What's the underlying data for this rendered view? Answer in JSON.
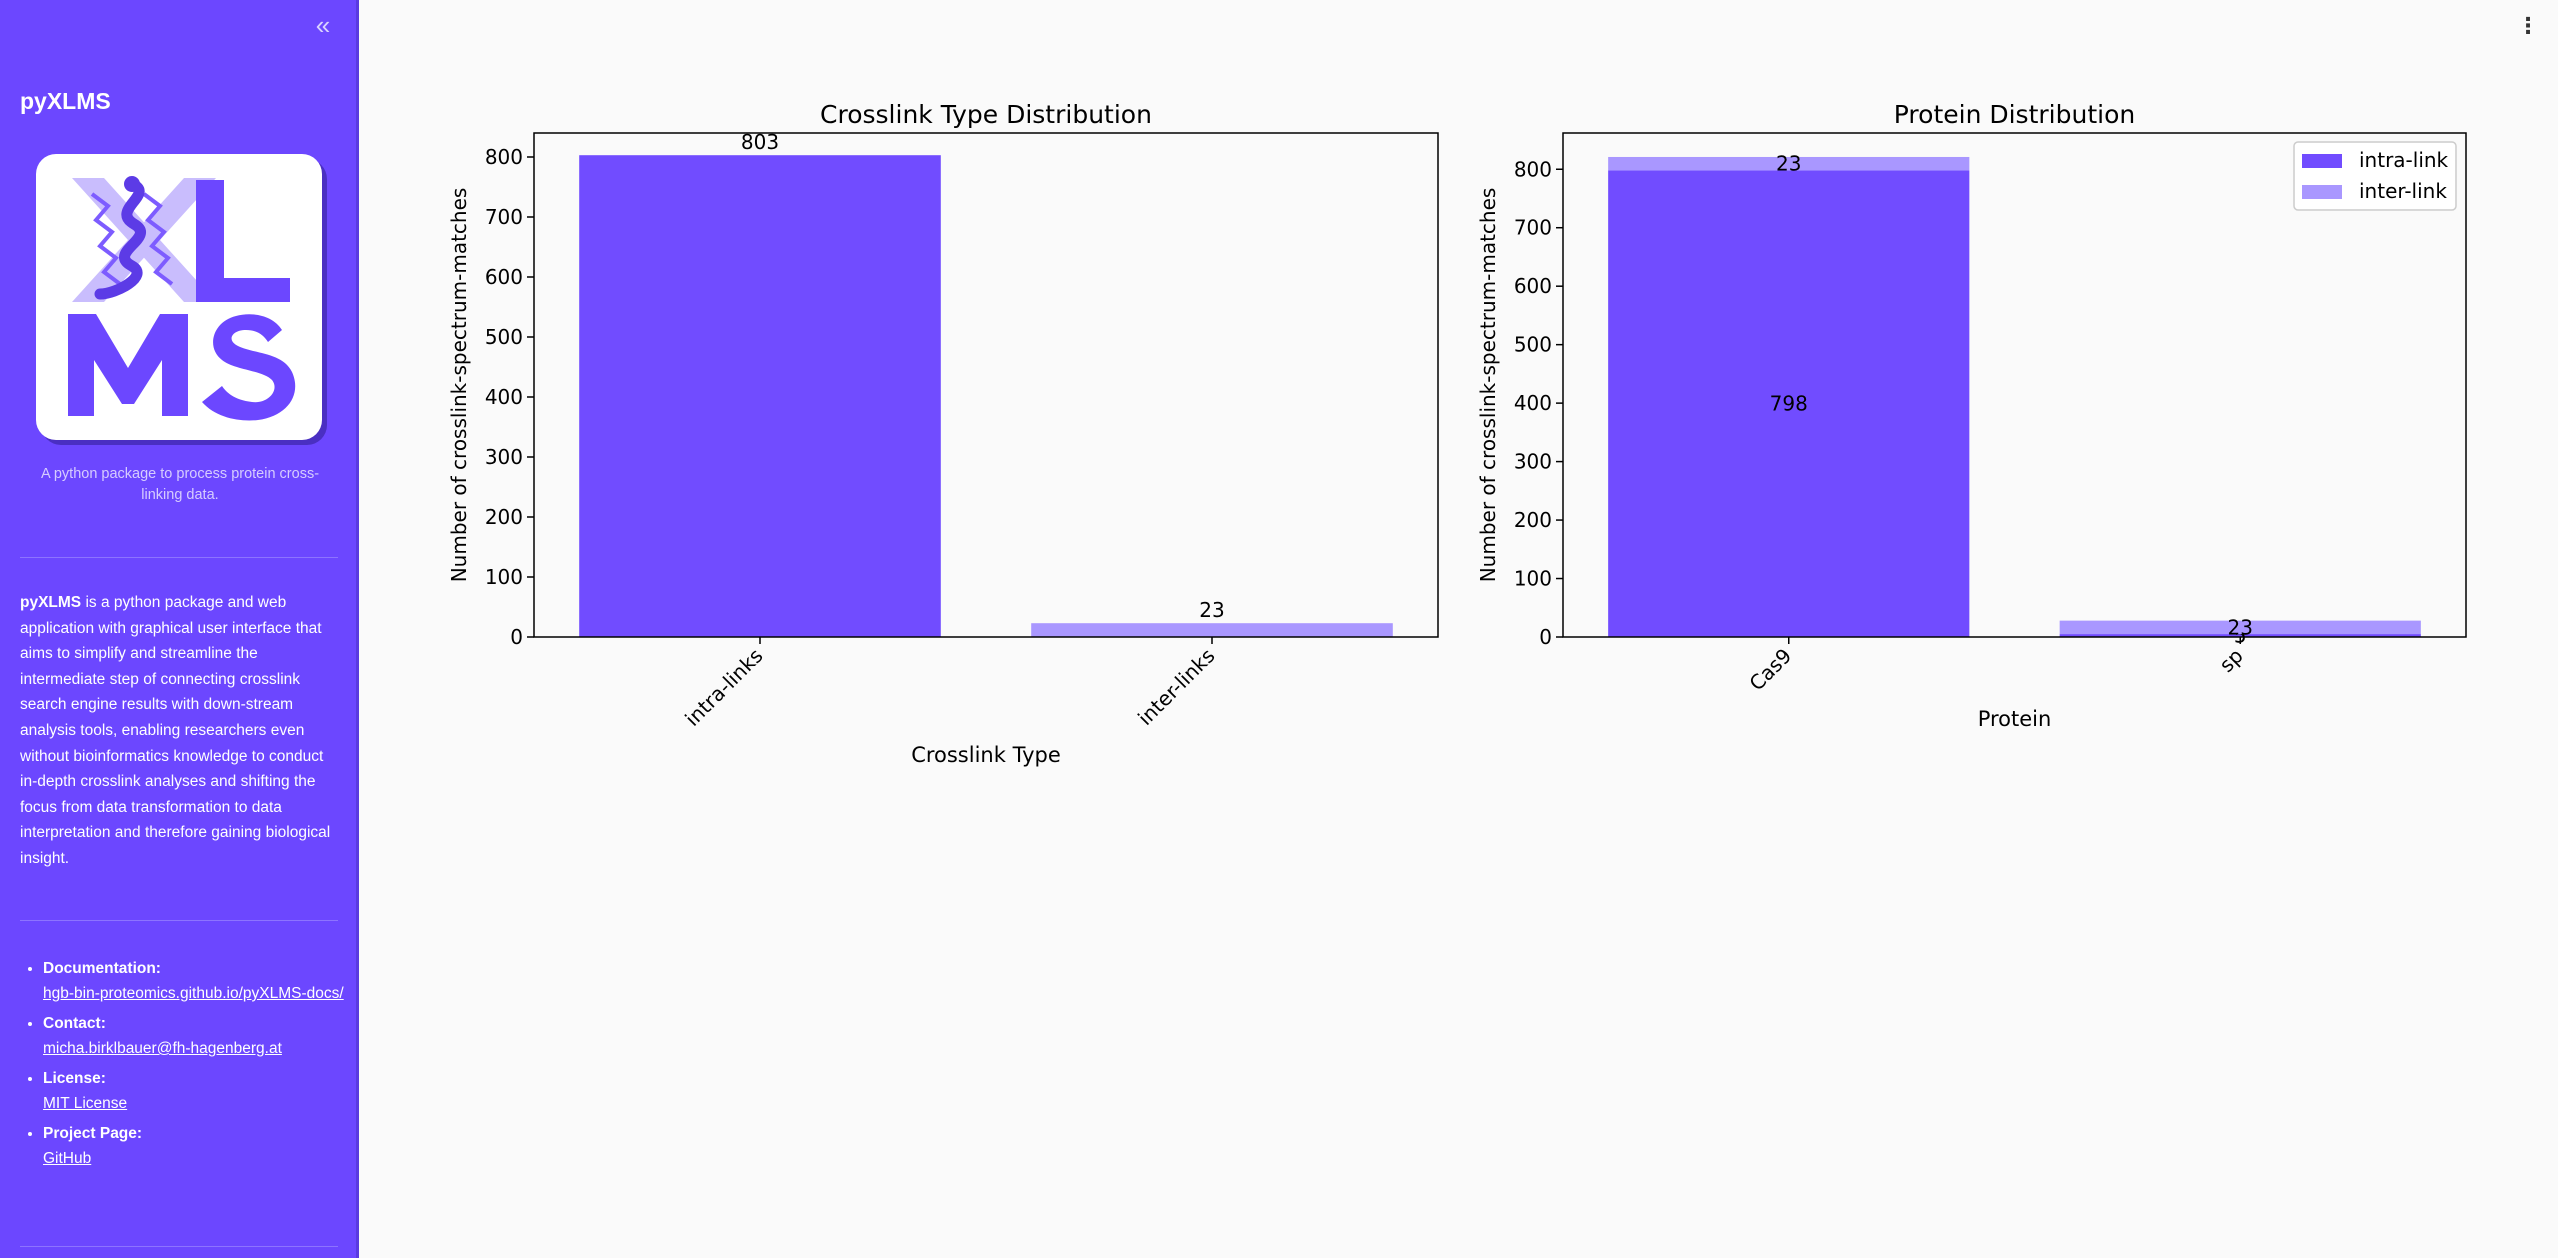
{
  "sidebar": {
    "collapse_icon": "double-chevron-left-icon",
    "app_title": "pyXLMS",
    "logo_text": {
      "top": "XL",
      "bottom": "MS"
    },
    "tagline": "A python package to process protein cross-linking data.",
    "description_bold": "pyXLMS",
    "description_rest": " is a python package and web application with graphical user interface that aims to simplify and streamline the intermediate step of connecting crosslink search engine results with down-stream analysis tools, enabling researchers even without bioinformatics knowledge to conduct in-depth crosslink analyses and shifting the focus from data transformation to data interpretation and therefore gaining biological insight.",
    "links": [
      {
        "label": "Documentation:",
        "value": "hgb-bin-proteomics.github.io/pyXLMS-docs/"
      },
      {
        "label": "Contact:",
        "value": "micha.birklbauer@fh-hagenberg.at"
      },
      {
        "label": "License:",
        "value": "MIT License"
      },
      {
        "label": "Project Page:",
        "value": "GitHub"
      }
    ]
  },
  "main_menu_icon": "kebab-menu-icon",
  "colors": {
    "brand": "#6c47ff",
    "intra": "#714cff",
    "inter": "#a997ff"
  },
  "chart_data": [
    {
      "type": "bar",
      "title": "Crosslink Type Distribution",
      "xlabel": "Crosslink Type",
      "ylabel": "Number of crosslink-spectrum-matches",
      "categories": [
        "intra-links",
        "inter-links"
      ],
      "values": [
        803,
        23
      ],
      "data_labels": [
        "803",
        "23"
      ],
      "ylim": [
        0,
        840
      ],
      "yticks": [
        0,
        100,
        200,
        300,
        400,
        500,
        600,
        700,
        800
      ],
      "grid": false,
      "legend": "none"
    },
    {
      "type": "bar",
      "stacked": true,
      "title": "Protein Distribution",
      "xlabel": "Protein",
      "ylabel": "Number of crosslink-spectrum-matches",
      "categories": [
        "Cas9",
        "sp"
      ],
      "series": [
        {
          "name": "intra-link",
          "values": [
            798,
            5
          ],
          "data_labels": [
            "798",
            "5"
          ]
        },
        {
          "name": "inter-link",
          "values": [
            23,
            23
          ],
          "data_labels": [
            "23",
            "23"
          ]
        }
      ],
      "ylim": [
        0,
        862
      ],
      "yticks": [
        0,
        100,
        200,
        300,
        400,
        500,
        600,
        700,
        800
      ],
      "grid": false,
      "legend": "top-right"
    }
  ]
}
